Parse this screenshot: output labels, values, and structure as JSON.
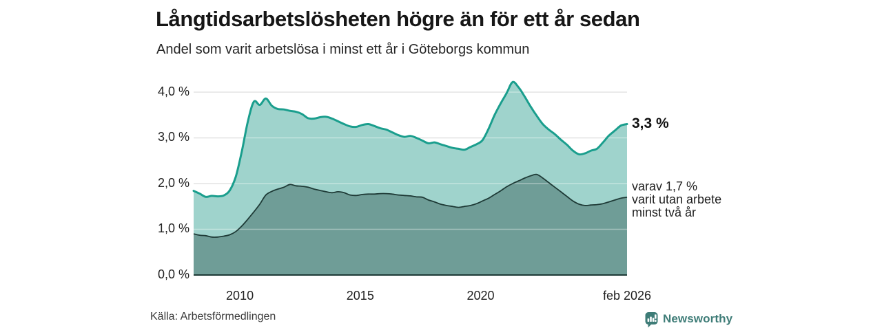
{
  "title": "Långtidsarbetslösheten högre än för ett år sedan",
  "subtitle": "Andel som varit arbetslösa i minst ett år i Göteborgs kommun",
  "source": "Källa: Arbetsförmedlingen",
  "brand": {
    "name": "Newsworthy",
    "color": "#3e7c77"
  },
  "annotations": {
    "total_end_label": "3,3 %",
    "two_year_lines": [
      "varav 1,7 %",
      "varit utan arbete",
      "minst två år"
    ]
  },
  "colors": {
    "total_line": "#1a9e8d",
    "total_fill": "#9fd3cc",
    "two_year_line": "#1e3a36",
    "two_year_fill": "#6f9d97",
    "grid": "#d7d7d7",
    "grid_overlay": "rgba(255,255,255,0.38)",
    "axis": "#1e3a36"
  },
  "chart_data": {
    "type": "area",
    "title": "Långtidsarbetslösheten högre än för ett år sedan",
    "subtitle": "Andel som varit arbetslösa i minst ett år i Göteborgs kommun",
    "unit": "%",
    "xlim": [
      2008.08,
      2026.08
    ],
    "ylim": [
      0,
      4.3
    ],
    "grid": true,
    "legend_position": "direct-labels-right",
    "xticks": [
      {
        "value": 2010.0,
        "label": "2010"
      },
      {
        "value": 2015.0,
        "label": "2015"
      },
      {
        "value": 2020.0,
        "label": "2020"
      },
      {
        "value": 2026.08,
        "label": "feb 2026"
      }
    ],
    "yticks": [
      {
        "value": 0,
        "label": "0,0 %"
      },
      {
        "value": 1,
        "label": "1,0 %"
      },
      {
        "value": 2,
        "label": "2,0 %"
      },
      {
        "value": 3,
        "label": "3,0 %"
      },
      {
        "value": 4,
        "label": "4,0 %"
      }
    ],
    "x": [
      2008.08,
      2008.33,
      2008.58,
      2008.83,
      2009.08,
      2009.33,
      2009.58,
      2009.83,
      2010.08,
      2010.33,
      2010.58,
      2010.83,
      2011.08,
      2011.33,
      2011.58,
      2011.83,
      2012.08,
      2012.33,
      2012.58,
      2012.83,
      2013.08,
      2013.33,
      2013.58,
      2013.83,
      2014.08,
      2014.33,
      2014.58,
      2014.83,
      2015.08,
      2015.33,
      2015.58,
      2015.83,
      2016.08,
      2016.33,
      2016.58,
      2016.83,
      2017.08,
      2017.33,
      2017.58,
      2017.83,
      2018.08,
      2018.33,
      2018.58,
      2018.83,
      2019.08,
      2019.33,
      2019.58,
      2019.83,
      2020.08,
      2020.33,
      2020.58,
      2020.83,
      2021.08,
      2021.33,
      2021.58,
      2021.83,
      2022.08,
      2022.33,
      2022.58,
      2022.83,
      2023.08,
      2023.33,
      2023.58,
      2023.83,
      2024.08,
      2024.33,
      2024.58,
      2024.83,
      2025.08,
      2025.33,
      2025.58,
      2025.83,
      2026.08
    ],
    "series": [
      {
        "name": "Andel arbetslösa minst ett år",
        "end_value": "3,3 %",
        "values": [
          1.84,
          1.78,
          1.71,
          1.73,
          1.72,
          1.74,
          1.85,
          2.15,
          2.7,
          3.35,
          3.79,
          3.72,
          3.86,
          3.7,
          3.63,
          3.62,
          3.59,
          3.57,
          3.52,
          3.43,
          3.42,
          3.45,
          3.46,
          3.42,
          3.36,
          3.3,
          3.25,
          3.24,
          3.28,
          3.3,
          3.26,
          3.21,
          3.18,
          3.12,
          3.06,
          3.02,
          3.04,
          3.0,
          2.94,
          2.88,
          2.9,
          2.86,
          2.82,
          2.78,
          2.76,
          2.74,
          2.8,
          2.86,
          2.95,
          3.2,
          3.5,
          3.75,
          3.98,
          4.22,
          4.1,
          3.9,
          3.68,
          3.48,
          3.3,
          3.18,
          3.08,
          2.96,
          2.85,
          2.72,
          2.64,
          2.66,
          2.72,
          2.76,
          2.9,
          3.05,
          3.16,
          3.27,
          3.3
        ]
      },
      {
        "name": "varav utan arbete minst två år",
        "end_value": "1,7 %",
        "values": [
          0.9,
          0.87,
          0.86,
          0.83,
          0.83,
          0.85,
          0.88,
          0.95,
          1.07,
          1.22,
          1.38,
          1.55,
          1.75,
          1.83,
          1.88,
          1.92,
          1.98,
          1.95,
          1.94,
          1.92,
          1.88,
          1.85,
          1.82,
          1.8,
          1.82,
          1.8,
          1.75,
          1.74,
          1.76,
          1.77,
          1.77,
          1.78,
          1.78,
          1.77,
          1.75,
          1.74,
          1.73,
          1.71,
          1.7,
          1.64,
          1.6,
          1.55,
          1.52,
          1.5,
          1.48,
          1.5,
          1.52,
          1.56,
          1.62,
          1.68,
          1.76,
          1.84,
          1.93,
          2.0,
          2.06,
          2.12,
          2.17,
          2.2,
          2.12,
          2.02,
          1.92,
          1.82,
          1.72,
          1.62,
          1.55,
          1.52,
          1.53,
          1.54,
          1.56,
          1.6,
          1.64,
          1.68,
          1.7
        ]
      }
    ]
  }
}
